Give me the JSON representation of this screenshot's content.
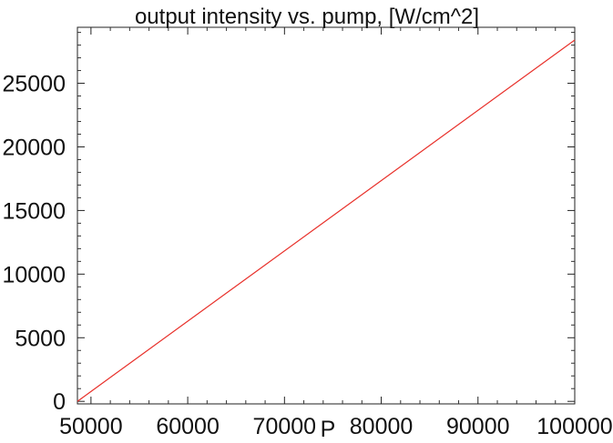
{
  "chart_data": {
    "type": "line",
    "title": "output intensity vs. pump, [W/cm^2]",
    "xlabel": "P",
    "ylabel": "",
    "xlim": [
      48600,
      100000
    ],
    "ylim": [
      -200,
      29400
    ],
    "x_ticks": [
      50000,
      60000,
      70000,
      80000,
      90000,
      100000
    ],
    "x_tick_labels": [
      "50000",
      "60000",
      "70000",
      "80000",
      "90000",
      "100000"
    ],
    "y_ticks": [
      0,
      5000,
      10000,
      15000,
      20000,
      25000
    ],
    "y_tick_labels": [
      "0",
      "5000",
      "10000",
      "15000",
      "20000",
      "25000"
    ],
    "grid": false,
    "series": [
      {
        "color": "#e8302a",
        "x": [
          48600,
          100000
        ],
        "y": [
          0,
          28400
        ]
      }
    ]
  }
}
